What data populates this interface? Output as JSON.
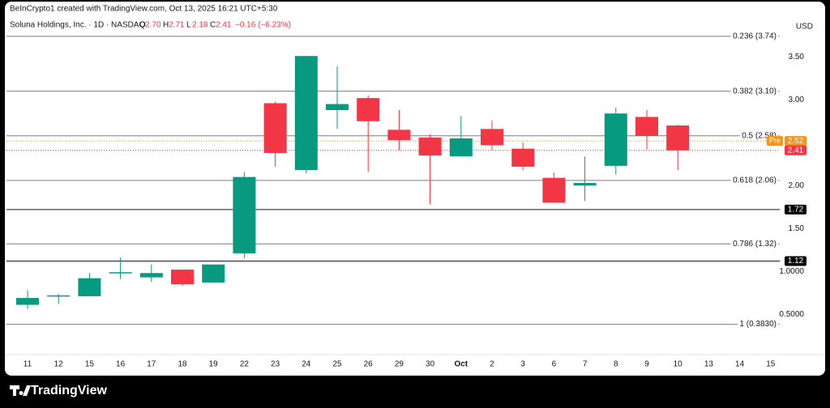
{
  "header": {
    "credit": "BeInCrypto1 created with TradingView.com, Oct 13, 2025 16:21 UTC+5:30"
  },
  "footer": {
    "brand": "TradingView"
  },
  "chart_data": {
    "type": "candlestick",
    "symbol": "Soluna Holdings, Inc. · 1D · NASDAQ",
    "legend_values": [
      {
        "label": "O",
        "value": "2.70"
      },
      {
        "label": "H",
        "value": "2.71"
      },
      {
        "label": "L",
        "value": "2.18"
      },
      {
        "label": "C",
        "value": "2.41"
      }
    ],
    "change": "−0.16 (−6.23%)",
    "currency": "USD",
    "categories": [
      "11",
      "12",
      "15",
      "16",
      "17",
      "18",
      "19",
      "22",
      "23",
      "24",
      "25",
      "26",
      "29",
      "30",
      "Oct",
      "2",
      "3",
      "6",
      "7",
      "8",
      "9",
      "10",
      "13",
      "14",
      "15"
    ],
    "open": [
      0.61,
      0.71,
      0.71,
      0.98,
      0.93,
      1.02,
      0.87,
      1.21,
      2.96,
      2.18,
      2.88,
      3.02,
      2.65,
      2.56,
      2.34,
      2.66,
      2.43,
      2.09,
      2.0,
      2.23,
      2.8,
      2.7,
      null,
      null,
      null
    ],
    "high": [
      0.78,
      0.74,
      0.98,
      1.16,
      1.08,
      1.02,
      1.08,
      2.16,
      2.98,
      3.51,
      3.39,
      3.05,
      2.88,
      2.6,
      2.81,
      2.76,
      2.5,
      2.15,
      2.34,
      2.91,
      2.88,
      2.71,
      null,
      null,
      null
    ],
    "low": [
      0.56,
      0.62,
      0.71,
      0.91,
      0.88,
      0.83,
      0.87,
      1.15,
      2.22,
      2.14,
      2.66,
      2.16,
      2.41,
      1.78,
      2.34,
      2.41,
      2.18,
      1.8,
      1.82,
      2.13,
      2.42,
      2.18,
      null,
      null,
      null
    ],
    "close": [
      0.69,
      0.72,
      0.92,
      0.99,
      0.98,
      0.85,
      1.08,
      2.1,
      2.38,
      3.51,
      2.95,
      2.75,
      2.53,
      2.35,
      2.55,
      2.47,
      2.22,
      1.8,
      2.03,
      2.84,
      2.58,
      2.41,
      null,
      null,
      null
    ],
    "up_color": "#089981",
    "down_color": "#f23645",
    "ylim": [
      0.03,
      3.88
    ],
    "yticks": [
      {
        "value": 0.5,
        "label": "0.5000"
      },
      {
        "value": 1,
        "label": "1.0000"
      },
      {
        "value": 1.5,
        "label": "1.50"
      },
      {
        "value": 2,
        "label": "2.00"
      },
      {
        "value": 3,
        "label": "3.00"
      },
      {
        "value": 3.5,
        "label": "3.50"
      }
    ],
    "fib_levels": [
      {
        "value": 3.74,
        "label": "0.236 (3.74)"
      },
      {
        "value": 3.1,
        "label": "0.382 (3.10)"
      },
      {
        "value": 2.58,
        "label": "0.5 (2.58)"
      },
      {
        "value": 2.06,
        "label": "0.618 (2.06)"
      },
      {
        "value": 1.32,
        "label": "0.786 (1.32)"
      },
      {
        "value": 0.383,
        "label": "1 (0.3830)"
      }
    ],
    "price_lines": [
      1.72,
      1.12
    ],
    "pre_market": {
      "label": "Pre",
      "value": 2.52,
      "color": "#f7931a"
    },
    "last_price": {
      "value": 2.41,
      "color": "#f23645"
    }
  }
}
